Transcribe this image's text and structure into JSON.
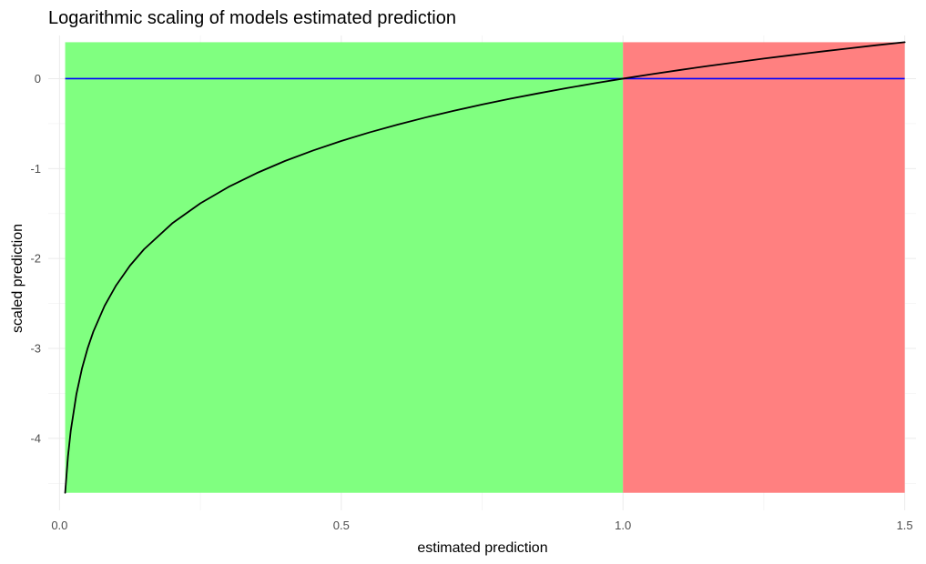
{
  "chart_data": {
    "type": "line",
    "title": "Logarithmic scaling of models estimated prediction",
    "xlabel": "estimated prediction",
    "ylabel": "scaled prediction",
    "xlim": [
      -0.02,
      1.52
    ],
    "ylim": [
      -4.8,
      0.48
    ],
    "x_ticks": [
      {
        "value": 0,
        "label": "0.0"
      },
      {
        "value": 0.5,
        "label": "0.5"
      },
      {
        "value": 1,
        "label": "1.0"
      },
      {
        "value": 1.5,
        "label": "1.5"
      }
    ],
    "x_minor_ticks": [
      0.25,
      0.75,
      1.25
    ],
    "y_ticks": [
      {
        "value": 0,
        "label": "0"
      },
      {
        "value": -1,
        "label": "-1"
      },
      {
        "value": -2,
        "label": "-2"
      },
      {
        "value": -3,
        "label": "-3"
      },
      {
        "value": -4,
        "label": "-4"
      }
    ],
    "y_minor_ticks": [
      -0.5,
      -1.5,
      -2.5,
      -3.5,
      -4.5
    ],
    "grid": true,
    "regions": [
      {
        "x": [
          0.01,
          1.0
        ],
        "y": [
          -4.605,
          0.405
        ],
        "color": "#80ff80"
      },
      {
        "x": [
          1.0,
          1.5
        ],
        "y": [
          -4.605,
          0.405
        ],
        "color": "#ff8080"
      }
    ],
    "hlines": [
      {
        "y": 0,
        "x": [
          0.01,
          1.5
        ],
        "color": "#0000ff"
      }
    ],
    "series": [
      {
        "color": "#000000",
        "x": [
          0.01,
          0.015,
          0.02,
          0.03,
          0.04,
          0.05,
          0.06,
          0.08,
          0.1,
          0.125,
          0.15,
          0.2,
          0.25,
          0.3,
          0.35,
          0.4,
          0.45,
          0.5,
          0.55,
          0.6,
          0.65,
          0.7,
          0.75,
          0.8,
          0.85,
          0.9,
          0.95,
          1.0,
          1.05,
          1.1,
          1.15,
          1.2,
          1.25,
          1.3,
          1.35,
          1.4,
          1.45,
          1.5
        ],
        "y": [
          -4.605,
          -4.2,
          -3.912,
          -3.507,
          -3.219,
          -2.996,
          -2.813,
          -2.526,
          -2.303,
          -2.079,
          -1.897,
          -1.609,
          -1.386,
          -1.204,
          -1.05,
          -0.916,
          -0.799,
          -0.693,
          -0.598,
          -0.511,
          -0.431,
          -0.357,
          -0.288,
          -0.223,
          -0.163,
          -0.105,
          -0.051,
          0.0,
          0.049,
          0.095,
          0.14,
          0.182,
          0.223,
          0.262,
          0.3,
          0.336,
          0.372,
          0.405
        ]
      }
    ]
  }
}
